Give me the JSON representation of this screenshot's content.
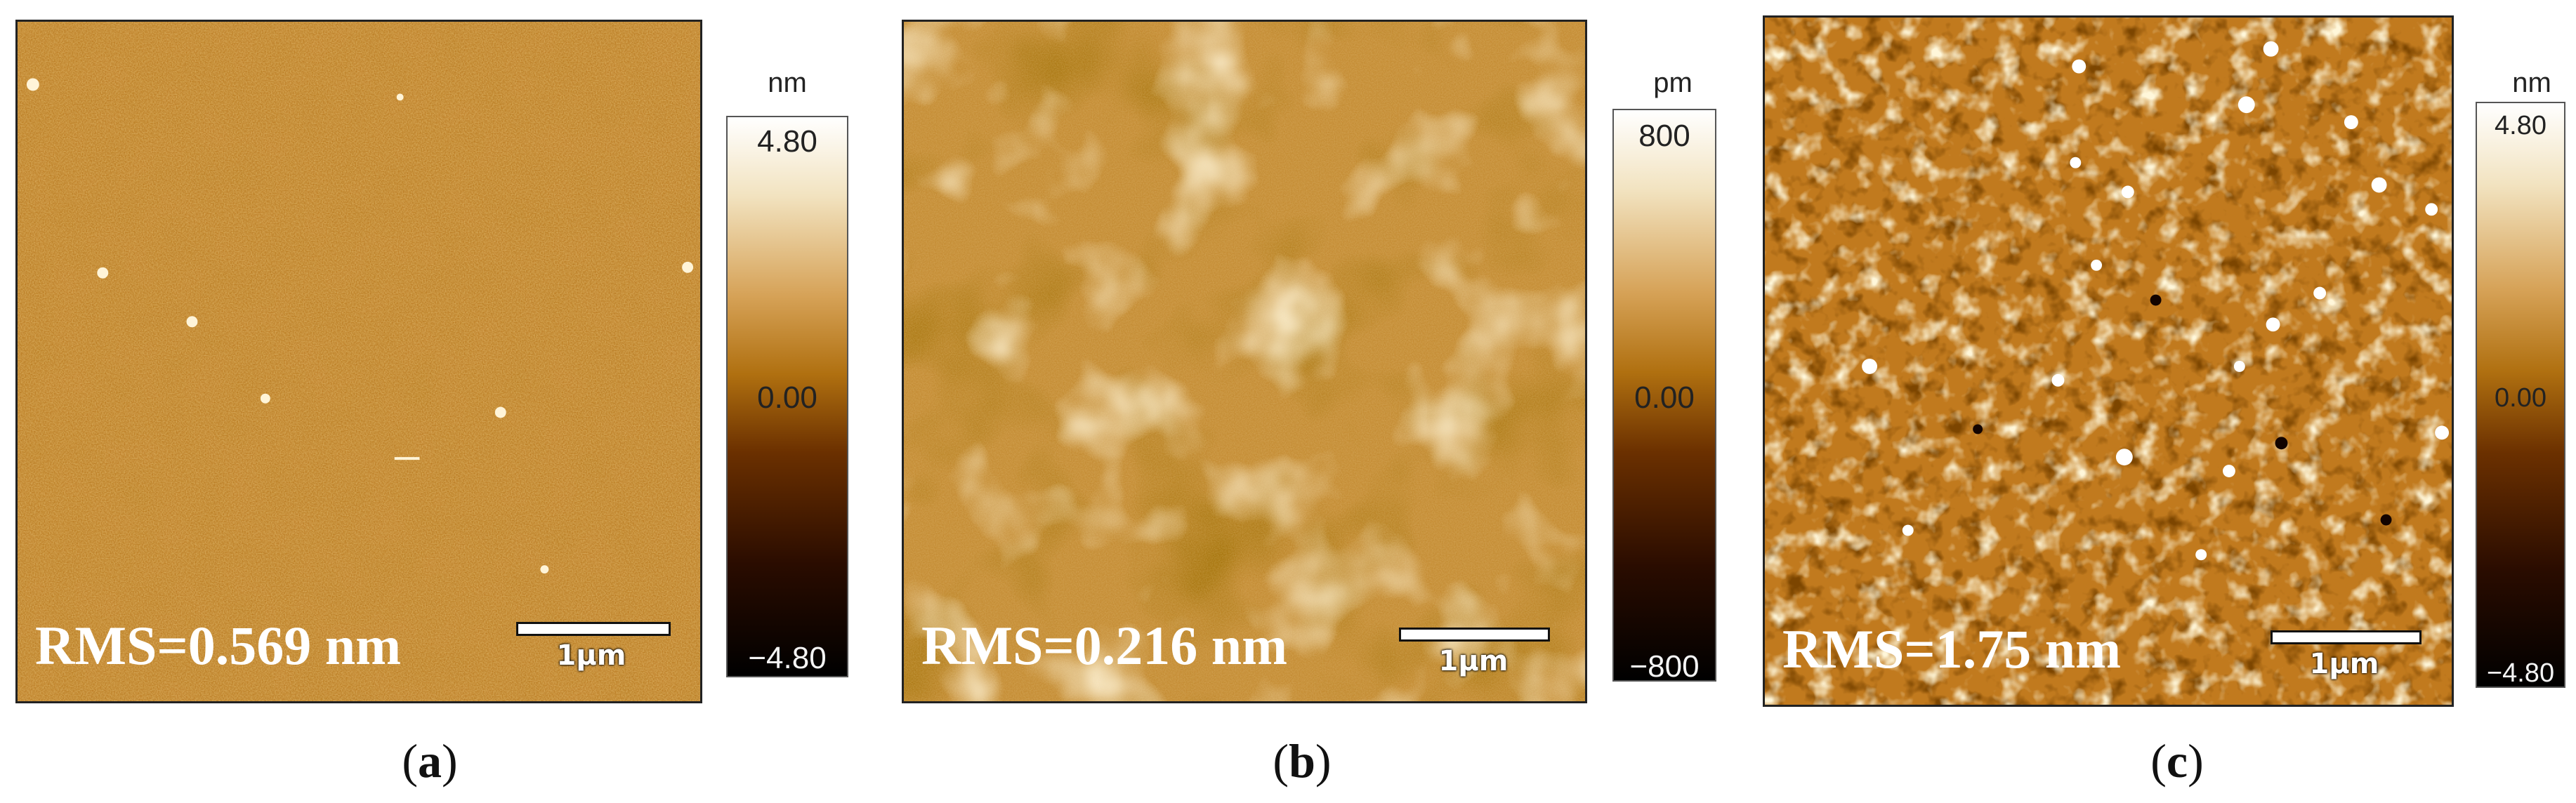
{
  "panels": [
    {
      "letter": "a",
      "rms": "RMS=0.569 nm",
      "scale": "1μm",
      "unit": "nm",
      "top": "4.80",
      "mid": "0.00",
      "bottom": "−4.80"
    },
    {
      "letter": "b",
      "rms": "RMS=0.216 nm",
      "scale": "1μm",
      "unit": "pm",
      "top": "800",
      "mid": "0.00",
      "bottom": "−800"
    },
    {
      "letter": "c",
      "rms": "RMS=1.75 nm",
      "scale": "1μm",
      "unit": "nm",
      "top": "4.80",
      "mid": "0.00",
      "bottom": "−4.80"
    }
  ],
  "colors": {
    "afm_dark": "#1a0500",
    "afm_mid": "#b06a10",
    "afm_light": "#fff2d0"
  }
}
